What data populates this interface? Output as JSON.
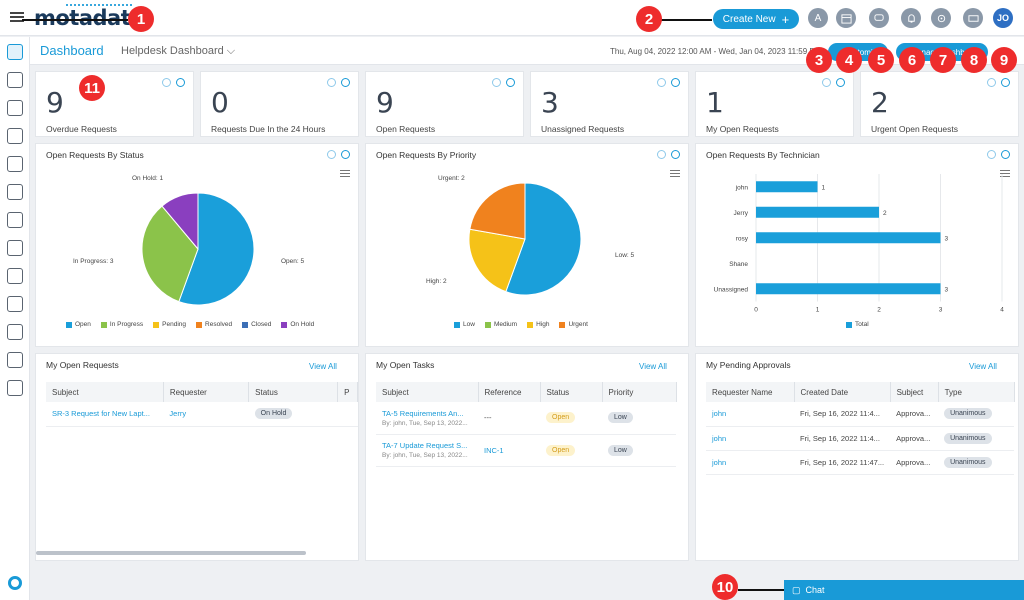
{
  "app": {
    "logo": "motadata"
  },
  "topbar": {
    "create_label": "Create New",
    "avatar_a": "A",
    "avatar_user": "JO"
  },
  "subbar": {
    "title": "Dashboard",
    "selector": "Helpdesk Dashboard",
    "daterange": "Thu, Aug 04, 2022 12:00 AM - Wed, Jan 04, 2023 11:59 PM",
    "btn1": "Customi",
    "btn2": "Manage Dashboa"
  },
  "stats": [
    {
      "value": "9",
      "label": "Overdue Requests"
    },
    {
      "value": "0",
      "label": "Requests Due In the 24 Hours"
    },
    {
      "value": "9",
      "label": "Open Requests"
    },
    {
      "value": "3",
      "label": "Unassigned Requests"
    },
    {
      "value": "1",
      "label": "My Open Requests"
    },
    {
      "value": "2",
      "label": "Urgent Open Requests"
    }
  ],
  "chart_data": [
    {
      "type": "pie",
      "title": "Open Requests By Status",
      "slices": [
        {
          "label": "Open",
          "value": 5,
          "color": "#1a9fda"
        },
        {
          "label": "In Progress",
          "value": 3,
          "color": "#8bc34a"
        },
        {
          "label": "On Hold",
          "value": 1,
          "color": "#8a3fbf"
        }
      ],
      "slice_labels": [
        "Open: 5",
        "In Progress: 3",
        "On Hold: 1"
      ],
      "legend": [
        {
          "label": "Open",
          "color": "#1a9fda"
        },
        {
          "label": "In Progress",
          "color": "#8bc34a"
        },
        {
          "label": "Pending",
          "color": "#f5c218"
        },
        {
          "label": "Resolved",
          "color": "#f0821e"
        },
        {
          "label": "Closed",
          "color": "#3c6fb6"
        },
        {
          "label": "On Hold",
          "color": "#8a3fbf"
        }
      ]
    },
    {
      "type": "pie",
      "title": "Open Requests By Priority",
      "slices": [
        {
          "label": "Low",
          "value": 5,
          "color": "#1a9fda"
        },
        {
          "label": "High",
          "value": 2,
          "color": "#f5c218"
        },
        {
          "label": "Urgent",
          "value": 2,
          "color": "#f0821e"
        }
      ],
      "slice_labels": [
        "Low: 5",
        "High: 2",
        "Urgent: 2"
      ],
      "legend": [
        {
          "label": "Low",
          "color": "#1a9fda"
        },
        {
          "label": "Medium",
          "color": "#8bc34a"
        },
        {
          "label": "High",
          "color": "#f5c218"
        },
        {
          "label": "Urgent",
          "color": "#f0821e"
        }
      ]
    },
    {
      "type": "bar",
      "orientation": "horizontal",
      "title": "Open Requests By Technician",
      "categories": [
        "john",
        "Jerry",
        "rosy",
        "Shane",
        "Unassigned"
      ],
      "values": [
        1,
        2,
        3,
        0,
        3
      ],
      "xticks": [
        "0",
        "1",
        "2",
        "3",
        "4"
      ],
      "xlim": [
        0,
        4
      ],
      "legend": [
        {
          "label": "Total",
          "color": "#1a9fda"
        }
      ]
    }
  ],
  "my_open_requests": {
    "title": "My Open Requests",
    "view_all": "View All",
    "columns": [
      "Subject",
      "Requester",
      "Status",
      "P"
    ],
    "rows": [
      {
        "subject": "SR-3 Request for New Lapt...",
        "requester": "Jerry",
        "status": "On Hold"
      }
    ]
  },
  "my_open_tasks": {
    "title": "My Open Tasks",
    "view_all": "View All",
    "columns": [
      "Subject",
      "Reference",
      "Status",
      "Priority"
    ],
    "rows": [
      {
        "subject": "TA-5 Requirements An...",
        "by": "By: john, Tue, Sep 13, 2022...",
        "reference": "---",
        "status": "Open",
        "priority": "Low"
      },
      {
        "subject": "TA-7 Update Request S...",
        "by": "By: john, Tue, Sep 13, 2022...",
        "reference": "INC-1",
        "status": "Open",
        "priority": "Low"
      }
    ]
  },
  "my_pending_approvals": {
    "title": "My Pending Approvals",
    "view_all": "View All",
    "columns": [
      "Requester Name",
      "Created Date",
      "Subject",
      "Type"
    ],
    "rows": [
      {
        "name": "john",
        "date": "Fri, Sep 16, 2022 11:4...",
        "subject": "Approva...",
        "type": "Unanimous"
      },
      {
        "name": "john",
        "date": "Fri, Sep 16, 2022 11:4...",
        "subject": "Approva...",
        "type": "Unanimous"
      },
      {
        "name": "john",
        "date": "Fri, Sep 16, 2022 11:47...",
        "subject": "Approva...",
        "type": "Unanimous"
      }
    ]
  },
  "chat": {
    "label": "Chat"
  },
  "callouts": [
    "1",
    "2",
    "3",
    "4",
    "5",
    "6",
    "7",
    "8",
    "9",
    "10",
    "11"
  ]
}
